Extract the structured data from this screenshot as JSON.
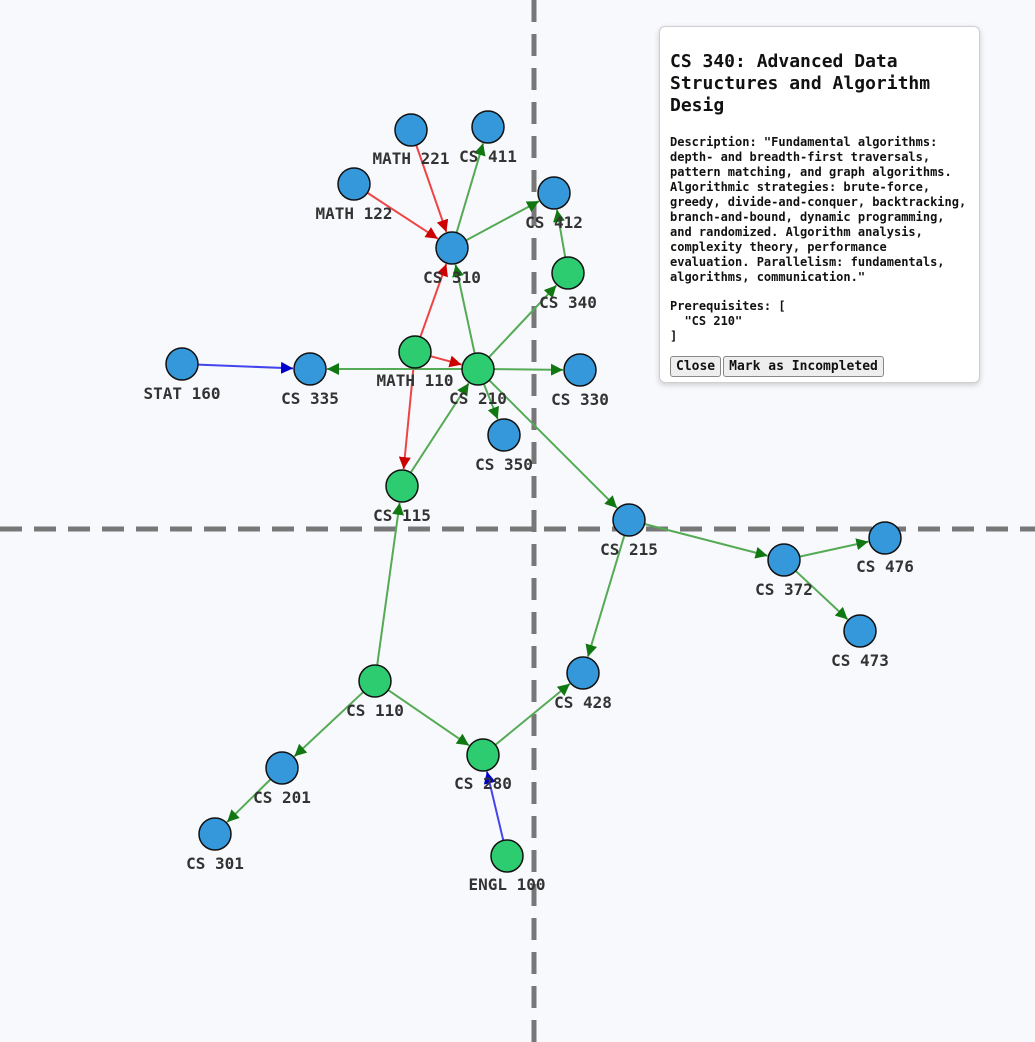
{
  "colors": {
    "background": "#f8f9fc",
    "node_default": "#3498db",
    "node_completed": "#2ecc71",
    "edge_green": "#55aa55",
    "edge_red": "#ee4444",
    "edge_blue": "#4444ee",
    "divider": "#777777"
  },
  "graph": {
    "nodes": [
      {
        "id": "MATH 221",
        "completed": false
      },
      {
        "id": "CS 411",
        "completed": false
      },
      {
        "id": "MATH 122",
        "completed": false
      },
      {
        "id": "CS 412",
        "completed": false
      },
      {
        "id": "CS 310",
        "completed": false
      },
      {
        "id": "CS 340",
        "completed": true
      },
      {
        "id": "STAT 160",
        "completed": false
      },
      {
        "id": "CS 335",
        "completed": false
      },
      {
        "id": "MATH 110",
        "completed": true
      },
      {
        "id": "CS 210",
        "completed": true
      },
      {
        "id": "CS 330",
        "completed": false
      },
      {
        "id": "CS 350",
        "completed": false
      },
      {
        "id": "CS 115",
        "completed": true
      },
      {
        "id": "CS 215",
        "completed": false
      },
      {
        "id": "CS 476",
        "completed": false
      },
      {
        "id": "CS 372",
        "completed": false
      },
      {
        "id": "CS 473",
        "completed": false
      },
      {
        "id": "CS 428",
        "completed": false
      },
      {
        "id": "CS 110",
        "completed": true
      },
      {
        "id": "CS 280",
        "completed": true
      },
      {
        "id": "CS 201",
        "completed": false
      },
      {
        "id": "CS 301",
        "completed": false
      },
      {
        "id": "ENGL 100",
        "completed": true
      }
    ],
    "edges": [
      {
        "from": "MATH 221",
        "to": "CS 310",
        "color": "red"
      },
      {
        "from": "MATH 122",
        "to": "CS 310",
        "color": "red"
      },
      {
        "from": "MATH 110",
        "to": "CS 310",
        "color": "red"
      },
      {
        "from": "MATH 110",
        "to": "CS 210",
        "color": "red"
      },
      {
        "from": "MATH 110",
        "to": "CS 115",
        "color": "red"
      },
      {
        "from": "CS 310",
        "to": "CS 411",
        "color": "green"
      },
      {
        "from": "CS 310",
        "to": "CS 412",
        "color": "green"
      },
      {
        "from": "CS 340",
        "to": "CS 412",
        "color": "green"
      },
      {
        "from": "CS 210",
        "to": "CS 310",
        "color": "green"
      },
      {
        "from": "CS 210",
        "to": "CS 340",
        "color": "green"
      },
      {
        "from": "CS 210",
        "to": "CS 335",
        "color": "green"
      },
      {
        "from": "CS 210",
        "to": "CS 330",
        "color": "green"
      },
      {
        "from": "CS 210",
        "to": "CS 350",
        "color": "green"
      },
      {
        "from": "CS 210",
        "to": "CS 215",
        "color": "green"
      },
      {
        "from": "CS 115",
        "to": "CS 210",
        "color": "green"
      },
      {
        "from": "STAT 160",
        "to": "CS 335",
        "color": "blue"
      },
      {
        "from": "CS 215",
        "to": "CS 372",
        "color": "green"
      },
      {
        "from": "CS 215",
        "to": "CS 428",
        "color": "green"
      },
      {
        "from": "CS 372",
        "to": "CS 476",
        "color": "green"
      },
      {
        "from": "CS 372",
        "to": "CS 473",
        "color": "green"
      },
      {
        "from": "CS 110",
        "to": "CS 115",
        "color": "green"
      },
      {
        "from": "CS 110",
        "to": "CS 280",
        "color": "green"
      },
      {
        "from": "CS 110",
        "to": "CS 201",
        "color": "green"
      },
      {
        "from": "CS 201",
        "to": "CS 301",
        "color": "green"
      },
      {
        "from": "CS 280",
        "to": "CS 428",
        "color": "green"
      },
      {
        "from": "ENGL 100",
        "to": "CS 280",
        "color": "blue"
      }
    ]
  },
  "panel": {
    "title": "CS 340: Advanced Data Structures and Algorithm Desig",
    "description": "Description: \"Fundamental algorithms: depth- and breadth-first traversals, pattern matching, and graph algorithms. Algorithmic strategies: brute-force, greedy, divide-and-conquer, backtracking, branch-and-bound, dynamic programming, and randomized. Algorithm analysis, complexity theory, performance evaluation. Parallelism: fundamentals, algorithms, communication.\"",
    "prerequisites": "Prerequisites: [\n  \"CS 210\"\n]",
    "close_label": "Close",
    "mark_label": "Mark as Incompleted"
  }
}
